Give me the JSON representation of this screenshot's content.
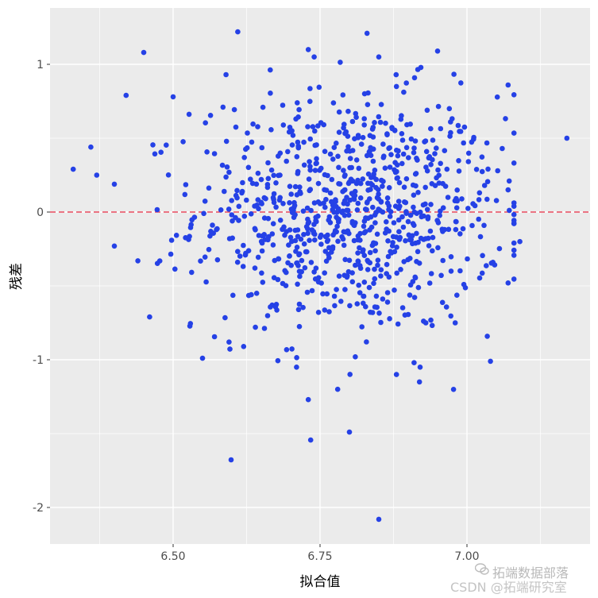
{
  "chart_data": {
    "type": "scatter",
    "xlabel": "拟合值",
    "ylabel": "残差",
    "xlim": [
      6.3,
      7.4
    ],
    "ylim": [
      -2.2,
      1.4
    ],
    "x_ticks": [
      6.5,
      6.75,
      7.0
    ],
    "x_tick_labels": [
      "6.50",
      "6.75",
      "7.00"
    ],
    "y_ticks": [
      1,
      0,
      -1,
      -2
    ],
    "y_tick_labels": [
      "1",
      "0",
      "-1",
      "-2"
    ],
    "grid": true,
    "reference_line": {
      "y": 0,
      "style": "dashed"
    },
    "point_count": 900,
    "seed": 12345,
    "notable_points": [
      [
        6.33,
        0.29
      ],
      [
        6.36,
        0.44
      ],
      [
        6.37,
        0.25
      ],
      [
        6.45,
        1.08
      ],
      [
        6.42,
        0.79
      ],
      [
        6.5,
        0.78
      ],
      [
        6.55,
        -0.99
      ],
      [
        6.61,
        1.22
      ],
      [
        6.59,
        0.93
      ],
      [
        6.73,
        1.1
      ],
      [
        6.74,
        1.05
      ],
      [
        6.83,
        1.21
      ],
      [
        6.85,
        1.05
      ],
      [
        6.95,
        1.09
      ],
      [
        7.07,
        0.86
      ],
      [
        7.17,
        0.5
      ],
      [
        6.44,
        -0.33
      ],
      [
        6.46,
        -0.71
      ],
      [
        6.4,
        -0.23
      ],
      [
        6.73,
        -1.27
      ],
      [
        6.78,
        -1.2
      ],
      [
        6.8,
        -1.49
      ],
      [
        6.85,
        -2.08
      ],
      [
        6.81,
        -0.98
      ],
      [
        6.71,
        -1.05
      ],
      [
        6.88,
        -1.1
      ],
      [
        6.91,
        -1.02
      ],
      [
        7.04,
        -1.01
      ],
      [
        7.09,
        -0.2
      ],
      [
        7.07,
        -0.48
      ],
      [
        6.62,
        -0.91
      ],
      [
        6.64,
        -0.78
      ],
      [
        6.93,
        -0.75
      ],
      [
        6.98,
        -0.75
      ],
      [
        7.03,
        0.18
      ],
      [
        7.06,
        0.43
      ],
      [
        7.07,
        0.15
      ],
      [
        6.97,
        0.7
      ],
      [
        6.88,
        0.85
      ]
    ],
    "colors": {
      "panel": "#EBEBEB",
      "grid": "#FFFFFF",
      "point": "#2541E6",
      "reference_line": "#E8485C"
    }
  },
  "watermark": {
    "line1": "拓端数据部落",
    "line2": "CSDN @拓端研究室"
  }
}
